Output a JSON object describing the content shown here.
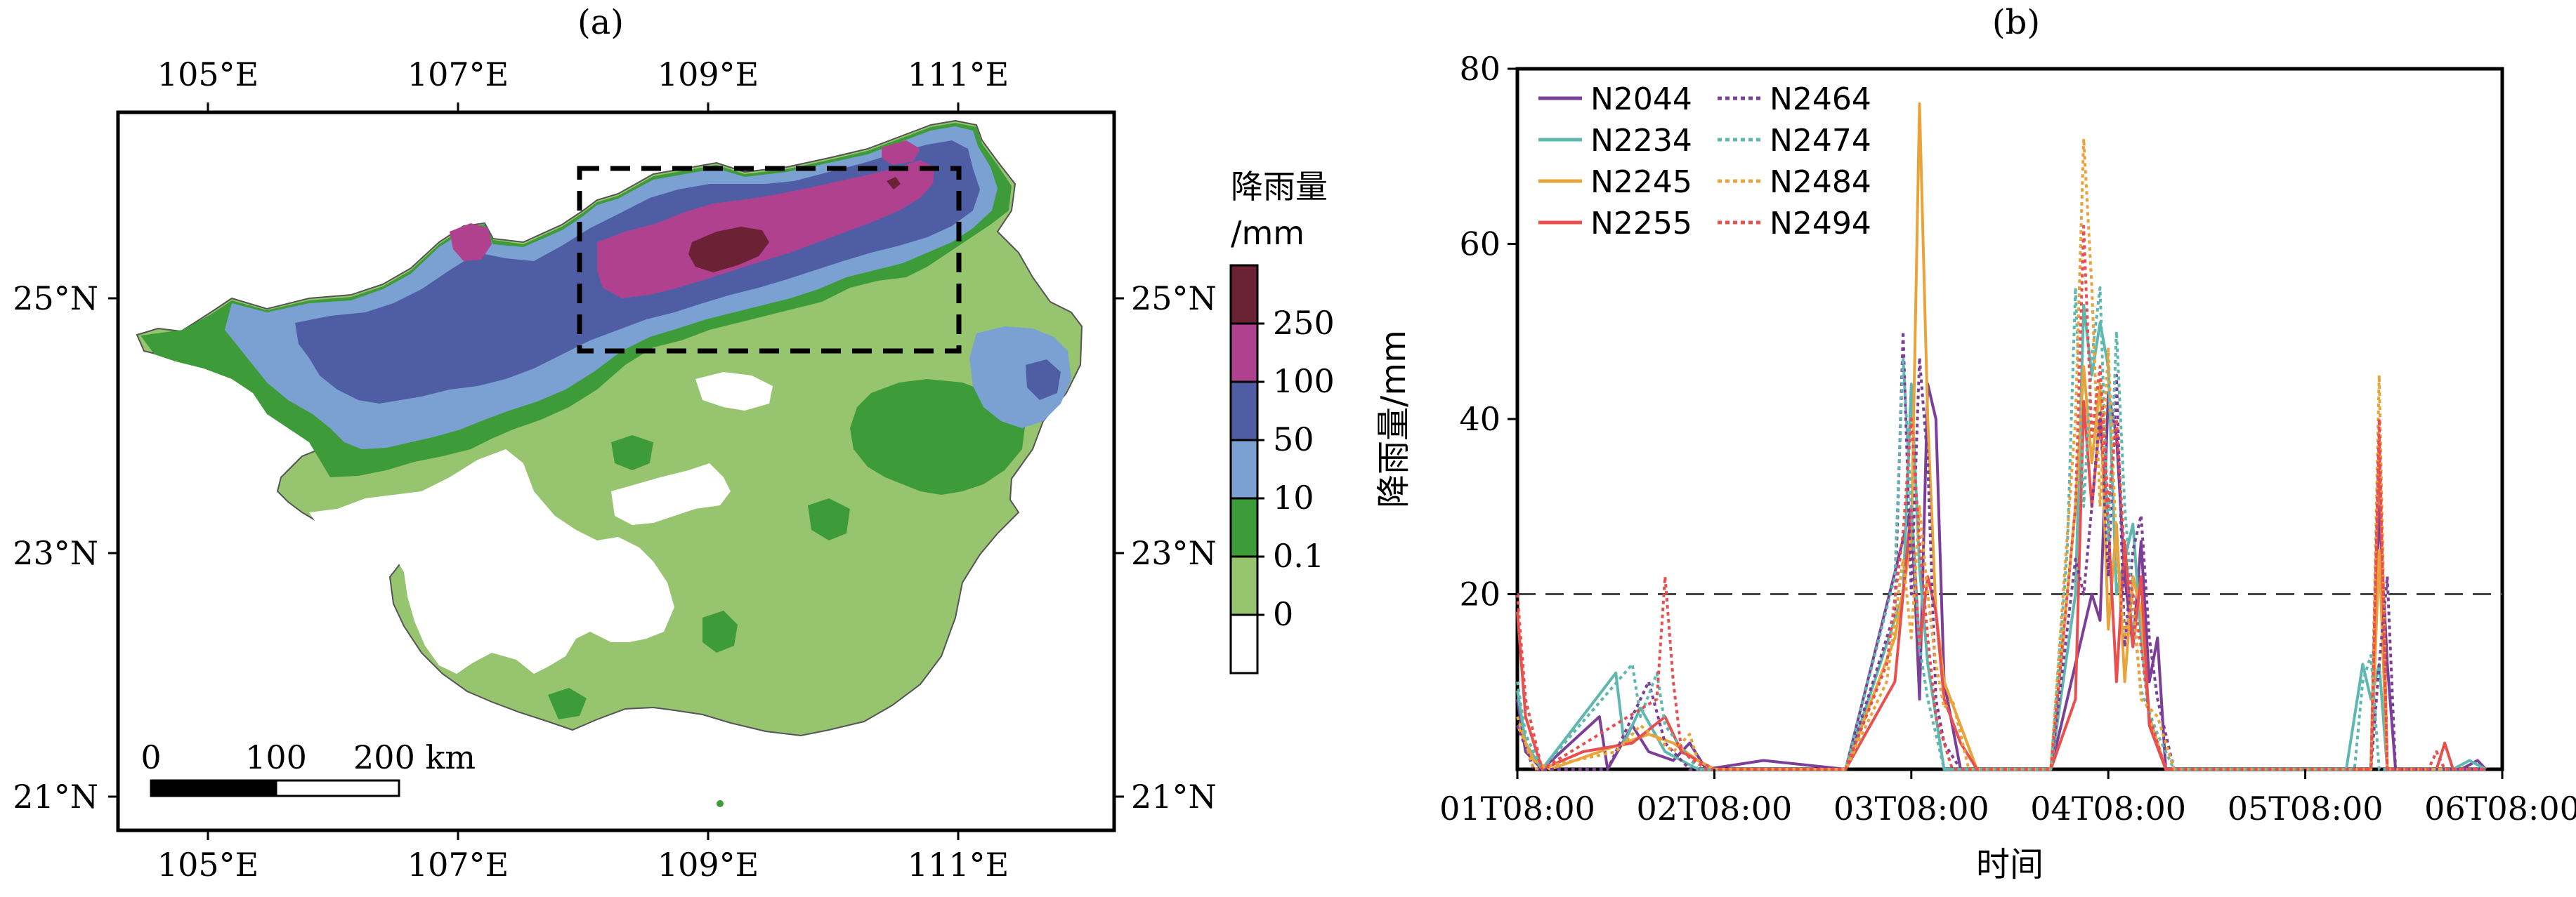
{
  "panel_a": {
    "label": "(a)",
    "lon_ticks": [
      "105°E",
      "107°E",
      "109°E",
      "111°E"
    ],
    "lat_ticks": [
      "25°N",
      "23°N",
      "21°N"
    ],
    "colorbar": {
      "title_line1": "降雨量",
      "title_line2": "/mm",
      "levels": [
        "250",
        "100",
        "50",
        "10",
        "0.1",
        "0"
      ],
      "colors": [
        "#6b2235",
        "#b0418f",
        "#4f5ea4",
        "#7ba1d3",
        "#3e9b3a",
        "#97c46e",
        "#ffffff"
      ]
    },
    "scalebar": {
      "labels": [
        "0",
        "100",
        "200 km"
      ]
    }
  },
  "panel_b": {
    "label": "(b)"
  },
  "chart_data": {
    "type": "line",
    "title": "(b)",
    "xlabel": "时间",
    "ylabel": "降雨量/mm",
    "x_ticks": [
      "01T08:00",
      "02T08:00",
      "03T08:00",
      "04T08:00",
      "05T08:00",
      "06T08:00"
    ],
    "x_range_hours": [
      0,
      120
    ],
    "ylim": [
      0,
      80
    ],
    "y_ticks": [
      20,
      40,
      60,
      80
    ],
    "threshold": 20,
    "legend_position": "top-left",
    "series": [
      {
        "name": "N2044",
        "color": "#7b3f98",
        "style": "solid",
        "points": [
          [
            0,
            8
          ],
          [
            1,
            2
          ],
          [
            3,
            0
          ],
          [
            10,
            6
          ],
          [
            11,
            0
          ],
          [
            14,
            5
          ],
          [
            16,
            2
          ],
          [
            19,
            1
          ],
          [
            21,
            3
          ],
          [
            23,
            0
          ],
          [
            30,
            1
          ],
          [
            40,
            0
          ],
          [
            48,
            30
          ],
          [
            49,
            8
          ],
          [
            50,
            44
          ],
          [
            51,
            40
          ],
          [
            52,
            10
          ],
          [
            54,
            0
          ],
          [
            65,
            0
          ],
          [
            70,
            20
          ],
          [
            71,
            17
          ],
          [
            72,
            43
          ],
          [
            73,
            38
          ],
          [
            74,
            22
          ],
          [
            75,
            14
          ],
          [
            76,
            26
          ],
          [
            77,
            10
          ],
          [
            78,
            15
          ],
          [
            79,
            0
          ],
          [
            81,
            0
          ],
          [
            101,
            0
          ],
          [
            104,
            0
          ],
          [
            105,
            30
          ],
          [
            106,
            12
          ],
          [
            107,
            0
          ],
          [
            115,
            0
          ],
          [
            117,
            1
          ],
          [
            118,
            0
          ]
        ]
      },
      {
        "name": "N2234",
        "color": "#5fb8b0",
        "style": "solid",
        "points": [
          [
            0,
            9
          ],
          [
            1,
            3
          ],
          [
            3,
            0
          ],
          [
            12,
            11
          ],
          [
            13,
            3
          ],
          [
            15,
            7
          ],
          [
            18,
            2
          ],
          [
            22,
            0
          ],
          [
            40,
            0
          ],
          [
            47,
            20
          ],
          [
            48,
            44
          ],
          [
            49,
            23
          ],
          [
            50,
            12
          ],
          [
            52,
            0
          ],
          [
            65,
            0
          ],
          [
            68,
            20
          ],
          [
            69,
            53
          ],
          [
            70,
            45
          ],
          [
            71,
            51
          ],
          [
            72,
            46
          ],
          [
            73,
            20
          ],
          [
            74,
            24
          ],
          [
            75,
            28
          ],
          [
            76,
            15
          ],
          [
            77,
            6
          ],
          [
            79,
            0
          ],
          [
            101,
            0
          ],
          [
            103,
            12
          ],
          [
            104,
            8
          ],
          [
            105,
            12
          ],
          [
            106,
            0
          ],
          [
            114,
            0
          ],
          [
            116,
            1
          ],
          [
            118,
            0
          ]
        ]
      },
      {
        "name": "N2245",
        "color": "#e8a43a",
        "style": "solid",
        "points": [
          [
            0,
            5
          ],
          [
            2,
            1
          ],
          [
            4,
            0
          ],
          [
            13,
            3
          ],
          [
            16,
            4
          ],
          [
            19,
            3
          ],
          [
            22,
            1
          ],
          [
            24,
            0
          ],
          [
            40,
            0
          ],
          [
            46,
            15
          ],
          [
            48,
            26
          ],
          [
            49,
            76
          ],
          [
            50,
            40
          ],
          [
            51,
            18
          ],
          [
            52,
            10
          ],
          [
            54,
            5
          ],
          [
            56,
            0
          ],
          [
            65,
            0
          ],
          [
            68,
            30
          ],
          [
            69,
            46
          ],
          [
            70,
            35
          ],
          [
            71,
            44
          ],
          [
            72,
            16
          ],
          [
            73,
            28
          ],
          [
            74,
            10
          ],
          [
            75,
            22
          ],
          [
            76,
            18
          ],
          [
            77,
            6
          ],
          [
            79,
            0
          ],
          [
            104,
            0
          ],
          [
            105,
            25
          ],
          [
            106,
            0
          ],
          [
            118,
            0
          ]
        ]
      },
      {
        "name": "N2255",
        "color": "#e8504f",
        "style": "solid",
        "points": [
          [
            0,
            18
          ],
          [
            1,
            6
          ],
          [
            3,
            0
          ],
          [
            8,
            2
          ],
          [
            14,
            3
          ],
          [
            18,
            6
          ],
          [
            20,
            2
          ],
          [
            24,
            0
          ],
          [
            40,
            0
          ],
          [
            46,
            10
          ],
          [
            48,
            30
          ],
          [
            49,
            14
          ],
          [
            50,
            22
          ],
          [
            51,
            18
          ],
          [
            52,
            8
          ],
          [
            54,
            3
          ],
          [
            56,
            0
          ],
          [
            65,
            0
          ],
          [
            68,
            8
          ],
          [
            69,
            42
          ],
          [
            70,
            30
          ],
          [
            71,
            40
          ],
          [
            72,
            28
          ],
          [
            73,
            10
          ],
          [
            74,
            26
          ],
          [
            75,
            14
          ],
          [
            76,
            22
          ],
          [
            77,
            5
          ],
          [
            79,
            0
          ],
          [
            104,
            0
          ],
          [
            105,
            38
          ],
          [
            106,
            0
          ],
          [
            112,
            0
          ],
          [
            113,
            3
          ],
          [
            114,
            0
          ],
          [
            118,
            0
          ]
        ]
      },
      {
        "name": "N2464",
        "color": "#7b3f98",
        "style": "dotted",
        "points": [
          [
            0,
            5
          ],
          [
            2,
            0
          ],
          [
            11,
            0
          ],
          [
            13,
            4
          ],
          [
            16,
            10
          ],
          [
            18,
            3
          ],
          [
            21,
            0
          ],
          [
            40,
            0
          ],
          [
            46,
            18
          ],
          [
            47,
            50
          ],
          [
            48,
            20
          ],
          [
            49,
            47
          ],
          [
            50,
            35
          ],
          [
            51,
            8
          ],
          [
            52,
            3
          ],
          [
            54,
            0
          ],
          [
            65,
            0
          ],
          [
            68,
            24
          ],
          [
            69,
            20
          ],
          [
            70,
            30
          ],
          [
            71,
            41
          ],
          [
            72,
            22
          ],
          [
            73,
            45
          ],
          [
            74,
            14
          ],
          [
            75,
            25
          ],
          [
            76,
            29
          ],
          [
            77,
            15
          ],
          [
            78,
            8
          ],
          [
            80,
            0
          ],
          [
            104,
            0
          ],
          [
            105,
            12
          ],
          [
            106,
            22
          ],
          [
            107,
            0
          ],
          [
            118,
            0
          ]
        ]
      },
      {
        "name": "N2474",
        "color": "#5fb8b0",
        "style": "dotted",
        "points": [
          [
            0,
            10
          ],
          [
            1,
            4
          ],
          [
            3,
            0
          ],
          [
            14,
            12
          ],
          [
            15,
            6
          ],
          [
            17,
            11
          ],
          [
            18,
            5
          ],
          [
            22,
            0
          ],
          [
            40,
            0
          ],
          [
            46,
            22
          ],
          [
            47,
            47
          ],
          [
            48,
            30
          ],
          [
            49,
            14
          ],
          [
            50,
            8
          ],
          [
            52,
            0
          ],
          [
            65,
            0
          ],
          [
            67,
            25
          ],
          [
            68,
            55
          ],
          [
            69,
            30
          ],
          [
            70,
            47
          ],
          [
            71,
            55
          ],
          [
            72,
            26
          ],
          [
            73,
            50
          ],
          [
            74,
            30
          ],
          [
            75,
            18
          ],
          [
            76,
            9
          ],
          [
            78,
            4
          ],
          [
            80,
            0
          ],
          [
            102,
            0
          ],
          [
            103,
            10
          ],
          [
            104,
            13
          ],
          [
            105,
            0
          ],
          [
            118,
            0
          ]
        ]
      },
      {
        "name": "N2484",
        "color": "#e8a43a",
        "style": "dotted",
        "points": [
          [
            0,
            6
          ],
          [
            2,
            0
          ],
          [
            12,
            2
          ],
          [
            15,
            5
          ],
          [
            19,
            2
          ],
          [
            21,
            4
          ],
          [
            22,
            1
          ],
          [
            24,
            0
          ],
          [
            40,
            0
          ],
          [
            45,
            10
          ],
          [
            47,
            24
          ],
          [
            48,
            15
          ],
          [
            49,
            30
          ],
          [
            50,
            20
          ],
          [
            51,
            12
          ],
          [
            52,
            7
          ],
          [
            53,
            8
          ],
          [
            55,
            0
          ],
          [
            65,
            0
          ],
          [
            68,
            40
          ],
          [
            69,
            72
          ],
          [
            70,
            55
          ],
          [
            71,
            30
          ],
          [
            72,
            48
          ],
          [
            73,
            25
          ],
          [
            74,
            15
          ],
          [
            75,
            20
          ],
          [
            76,
            8
          ],
          [
            78,
            6
          ],
          [
            80,
            0
          ],
          [
            104,
            0
          ],
          [
            105,
            45
          ],
          [
            106,
            0
          ],
          [
            118,
            0
          ]
        ]
      },
      {
        "name": "N2494",
        "color": "#e8504f",
        "style": "dotted",
        "points": [
          [
            0,
            20
          ],
          [
            1,
            8
          ],
          [
            3,
            0
          ],
          [
            17,
            8
          ],
          [
            18,
            22
          ],
          [
            19,
            10
          ],
          [
            20,
            2
          ],
          [
            23,
            0
          ],
          [
            40,
            0
          ],
          [
            45,
            12
          ],
          [
            47,
            27
          ],
          [
            48,
            40
          ],
          [
            49,
            26
          ],
          [
            50,
            15
          ],
          [
            51,
            6
          ],
          [
            53,
            0
          ],
          [
            65,
            0
          ],
          [
            68,
            30
          ],
          [
            69,
            62
          ],
          [
            70,
            38
          ],
          [
            71,
            46
          ],
          [
            72,
            30
          ],
          [
            73,
            40
          ],
          [
            74,
            24
          ],
          [
            75,
            20
          ],
          [
            76,
            14
          ],
          [
            77,
            6
          ],
          [
            79,
            0
          ],
          [
            104,
            0
          ],
          [
            105,
            40
          ],
          [
            106,
            0
          ],
          [
            111,
            0
          ],
          [
            112,
            2
          ],
          [
            113,
            0
          ],
          [
            118,
            0
          ]
        ]
      }
    ]
  }
}
